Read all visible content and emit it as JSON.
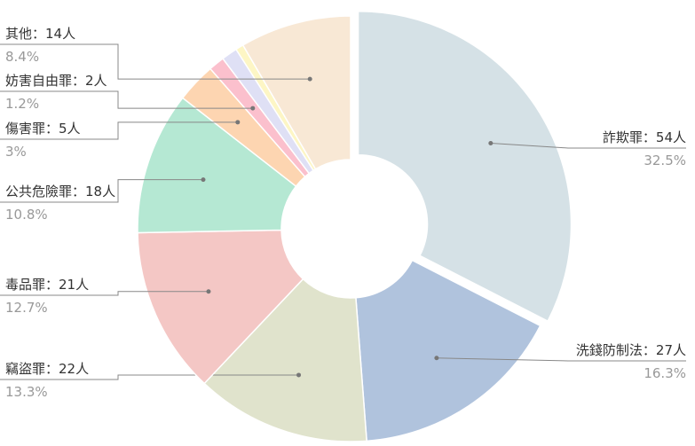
{
  "chart_data": {
    "type": "donut",
    "categories": [
      "詐欺罪：54人",
      "洗錢防制法：27人",
      "竊盜罪：22人",
      "毒品罪：21人",
      "公共危險罪：18人",
      "傷害罪：5人",
      "妨害自由罪：2人",
      null,
      null,
      "其他：14人"
    ],
    "values": [
      54,
      27,
      22,
      21,
      18,
      5,
      2,
      2,
      1,
      14
    ],
    "percents": [
      32.5,
      16.3,
      13.3,
      12.7,
      10.8,
      3,
      1.2,
      1.2,
      0.6,
      8.4
    ],
    "value_labels": [
      "32.5%",
      "16.3%",
      "13.3%",
      "12.7%",
      "10.8%",
      "3%",
      "1.2%",
      null,
      null,
      "8.4%"
    ],
    "colors": [
      "#d5e1e6",
      "#b0c3dd",
      "#e0e3cc",
      "#f4c7c5",
      "#b5e8d3",
      "#fdd5b1",
      "#fbc0cd",
      "#dfe0f5",
      "#fdf6c5",
      "#f8e8d5"
    ],
    "exploded": [
      0
    ]
  }
}
